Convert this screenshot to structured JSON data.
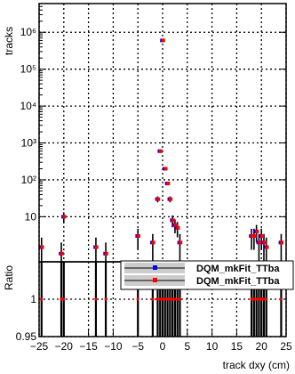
{
  "chart_data": [
    {
      "type": "scatter",
      "panel": "main",
      "ylabel": "tracks",
      "yscale": "log",
      "ylim": [
        0.6,
        6000000
      ],
      "xlim": [
        -25,
        25
      ],
      "grid": true,
      "y_ticks": [
        {
          "value": 10,
          "label": "10"
        },
        {
          "value": 100,
          "label": "10²"
        },
        {
          "value": 1000,
          "label": "10³"
        },
        {
          "value": 10000,
          "label": "10⁴"
        },
        {
          "value": 100000,
          "label": "10⁵"
        },
        {
          "value": 1000000,
          "label": "10⁶"
        }
      ],
      "series": [
        {
          "color": "#0000ff",
          "x": [
            -24.5,
            -20.5,
            -20,
            -13.5,
            -11.5,
            -5,
            -2,
            -1,
            -0.5,
            0,
            0.5,
            1,
            1.5,
            2,
            2.5,
            3,
            3.5,
            18,
            18.5,
            19,
            19.5,
            20,
            20.5,
            21,
            24
          ],
          "y": [
            1.5,
            1,
            10,
            1.5,
            1,
            3,
            2,
            30,
            600,
            600000,
            200,
            80,
            30,
            8,
            6,
            5,
            2,
            3,
            3,
            4,
            2,
            3,
            2,
            1.5,
            2
          ]
        },
        {
          "color": "#ff0000",
          "x": [
            -24.5,
            -20.5,
            -20,
            -13.5,
            -11.5,
            -5,
            -2,
            -1,
            -0.5,
            0,
            0.5,
            1,
            1.5,
            2,
            2.5,
            3,
            3.5,
            18,
            18.5,
            19,
            19.5,
            20,
            20.5,
            21,
            24
          ],
          "y": [
            1.5,
            1,
            10,
            1.5,
            1,
            3,
            2,
            30,
            600,
            600000,
            200,
            80,
            30,
            8,
            6,
            5,
            2,
            3,
            3,
            4,
            2,
            3,
            2,
            1.5,
            2
          ]
        }
      ]
    },
    {
      "type": "scatter",
      "panel": "ratio",
      "ylabel": "Ratio",
      "xlabel": "track dxy (cm)",
      "xlim": [
        -25,
        25
      ],
      "ylim": [
        0.95,
        1.05
      ],
      "grid": true,
      "y_ticks": [
        {
          "value": 0.95,
          "label": "0.95"
        },
        {
          "value": 1,
          "label": "1"
        }
      ],
      "x_ticks": [
        {
          "value": -25,
          "label": "−25"
        },
        {
          "value": -20,
          "label": "−20"
        },
        {
          "value": -15,
          "label": "−15"
        },
        {
          "value": -10,
          "label": "−10"
        },
        {
          "value": -5,
          "label": "−5"
        },
        {
          "value": 0,
          "label": "0"
        },
        {
          "value": 5,
          "label": "5"
        },
        {
          "value": 10,
          "label": "10"
        },
        {
          "value": 15,
          "label": "15"
        },
        {
          "value": 20,
          "label": "20"
        },
        {
          "value": 25,
          "label": "25"
        }
      ],
      "series": [
        {
          "color": "#ff0000",
          "x": [
            -24.5,
            -20.5,
            -20,
            -13.5,
            -11.5,
            -5,
            -2,
            -1,
            -0.5,
            0,
            0.5,
            1,
            1.5,
            2,
            2.5,
            3,
            3.5,
            18,
            18.5,
            19,
            19.5,
            20,
            20.5,
            21,
            24
          ],
          "y": [
            1,
            1,
            1,
            1,
            1,
            1,
            1,
            1,
            1,
            1,
            1,
            1,
            1,
            1,
            1,
            1,
            1,
            1,
            1,
            1,
            1,
            1,
            1,
            1,
            1
          ]
        }
      ]
    }
  ],
  "legend": {
    "placement": "top-right of ratio panel",
    "entries": [
      {
        "label": "DQM_mkFit_TTba",
        "color": "#0000ff"
      },
      {
        "label": "DQM_mkFit_TTba",
        "color": "#ff0000"
      }
    ]
  }
}
